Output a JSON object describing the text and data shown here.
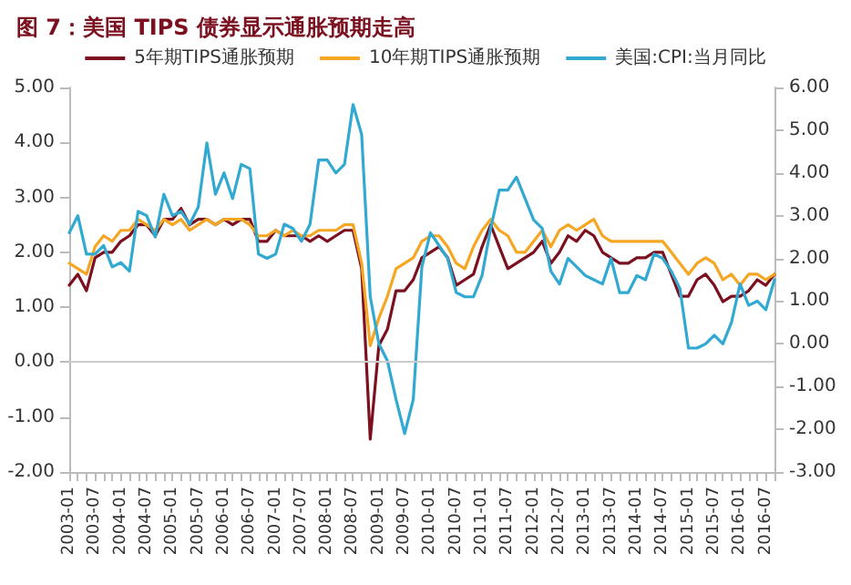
{
  "chart_data": {
    "type": "line",
    "title": "图 7：美国 TIPS 债券显示通胀预期走高",
    "categories": [
      "2003-01",
      null,
      null,
      "2003-07",
      null,
      null,
      "2004-01",
      null,
      null,
      "2004-07",
      null,
      null,
      "2005-01",
      null,
      null,
      "2005-07",
      null,
      null,
      "2006-01",
      null,
      null,
      "2006-07",
      null,
      null,
      "2007-01",
      null,
      null,
      "2007-07",
      null,
      null,
      "2008-01",
      null,
      null,
      "2008-07",
      null,
      null,
      "2009-01",
      null,
      null,
      "2009-07",
      null,
      null,
      "2010-01",
      null,
      null,
      "2010-07",
      null,
      null,
      "2011-01",
      null,
      null,
      "2011-07",
      null,
      null,
      "2012-01",
      null,
      null,
      "2012-07",
      null,
      null,
      "2013-01",
      null,
      null,
      "2013-07",
      null,
      null,
      "2014-01",
      null,
      null,
      "2014-07",
      null,
      null,
      "2015-01",
      null,
      null,
      "2015-07",
      null,
      null,
      "2016-01",
      null,
      null,
      "2016-07",
      null
    ],
    "series": [
      {
        "name": "5年期TIPS通胀预期",
        "color": "#7b1020",
        "values": [
          1.4,
          1.6,
          1.3,
          1.9,
          2.0,
          2.0,
          2.2,
          2.3,
          2.5,
          2.5,
          2.3,
          2.6,
          2.6,
          2.8,
          2.5,
          2.6,
          2.6,
          2.5,
          2.6,
          2.5,
          2.6,
          2.6,
          2.2,
          2.2,
          2.4,
          2.3,
          2.3,
          2.3,
          2.2,
          2.3,
          2.2,
          2.3,
          2.4,
          2.4,
          1.7,
          -1.4,
          0.3,
          0.6,
          1.3,
          1.3,
          1.5,
          1.9,
          2.0,
          2.1,
          1.9,
          1.4,
          1.5,
          1.6,
          2.1,
          2.5,
          2.1,
          1.7,
          1.8,
          1.9,
          2.0,
          2.2,
          1.8,
          2.0,
          2.3,
          2.2,
          2.4,
          2.3,
          2.0,
          1.9,
          1.8,
          1.8,
          1.9,
          1.9,
          2.0,
          2.0,
          1.6,
          1.2,
          1.2,
          1.5,
          1.6,
          1.4,
          1.1,
          1.2,
          1.2,
          1.3,
          1.5,
          1.4,
          1.6
        ]
      },
      {
        "name": "10年期TIPS通胀预期",
        "color": "#f5a623",
        "values": [
          1.8,
          1.7,
          1.6,
          2.1,
          2.3,
          2.2,
          2.4,
          2.4,
          2.6,
          2.5,
          2.4,
          2.6,
          2.5,
          2.6,
          2.4,
          2.5,
          2.6,
          2.5,
          2.6,
          2.6,
          2.6,
          2.5,
          2.3,
          2.3,
          2.4,
          2.3,
          2.4,
          2.3,
          2.3,
          2.4,
          2.4,
          2.4,
          2.5,
          2.5,
          1.8,
          0.3,
          0.8,
          1.2,
          1.7,
          1.8,
          1.9,
          2.2,
          2.3,
          2.3,
          2.1,
          1.8,
          1.7,
          2.1,
          2.4,
          2.6,
          2.4,
          2.3,
          2.0,
          2.0,
          2.2,
          2.4,
          2.1,
          2.4,
          2.5,
          2.4,
          2.5,
          2.6,
          2.3,
          2.2,
          2.2,
          2.2,
          2.2,
          2.2,
          2.2,
          2.2,
          2.0,
          1.8,
          1.6,
          1.8,
          1.9,
          1.8,
          1.5,
          1.6,
          1.4,
          1.6,
          1.6,
          1.5,
          1.6
        ]
      },
      {
        "name": "美国:CPI:当月同比",
        "color": "#31a9d0",
        "axis": "y2",
        "values": [
          2.6,
          3.0,
          2.1,
          2.1,
          2.3,
          1.8,
          1.9,
          1.7,
          3.1,
          3.0,
          2.5,
          3.5,
          3.0,
          3.1,
          2.8,
          3.2,
          4.7,
          3.5,
          4.0,
          3.4,
          4.2,
          4.1,
          2.1,
          2.0,
          2.1,
          2.8,
          2.7,
          2.4,
          2.8,
          4.3,
          4.3,
          4.0,
          4.2,
          5.6,
          4.9,
          1.1,
          0.0,
          -0.4,
          -1.3,
          -2.1,
          -1.3,
          1.8,
          2.6,
          2.3,
          2.0,
          1.2,
          1.1,
          1.1,
          1.6,
          2.7,
          3.6,
          3.6,
          3.9,
          3.4,
          2.9,
          2.7,
          1.7,
          1.4,
          2.0,
          1.8,
          1.6,
          1.5,
          1.4,
          2.0,
          1.2,
          1.2,
          1.6,
          1.5,
          2.1,
          2.0,
          1.7,
          1.3,
          -0.1,
          -0.1,
          0.0,
          0.2,
          0.0,
          0.5,
          1.4,
          0.9,
          1.0,
          0.8,
          1.5
        ]
      }
    ],
    "ylim": [
      -2,
      5
    ],
    "yticks": [
      {
        "value": -2,
        "label": "-2.00"
      },
      {
        "value": -1,
        "label": "-1.00"
      },
      {
        "value": 0,
        "label": "0.00"
      },
      {
        "value": 1,
        "label": "1.00"
      },
      {
        "value": 2,
        "label": "2.00"
      },
      {
        "value": 3,
        "label": "3.00"
      },
      {
        "value": 4,
        "label": "4.00"
      },
      {
        "value": 5,
        "label": "5.00"
      }
    ],
    "y2lim": [
      -3,
      6
    ],
    "y2ticks": [
      {
        "value": -3,
        "label": "-3.00"
      },
      {
        "value": -2,
        "label": "-2.00"
      },
      {
        "value": -1,
        "label": "-1.00"
      },
      {
        "value": 0,
        "label": "0.00"
      },
      {
        "value": 1,
        "label": "1.00"
      },
      {
        "value": 2,
        "label": "2.00"
      },
      {
        "value": 3,
        "label": "3.00"
      },
      {
        "value": 4,
        "label": "4.00"
      },
      {
        "value": 5,
        "label": "5.00"
      },
      {
        "value": 6,
        "label": "6.00"
      }
    ],
    "ref_lines": [
      {
        "axis": "y",
        "value": 0,
        "color": "#cccccc"
      }
    ],
    "grid": false,
    "legend": "top",
    "marker": "none",
    "line_style": "solid"
  }
}
